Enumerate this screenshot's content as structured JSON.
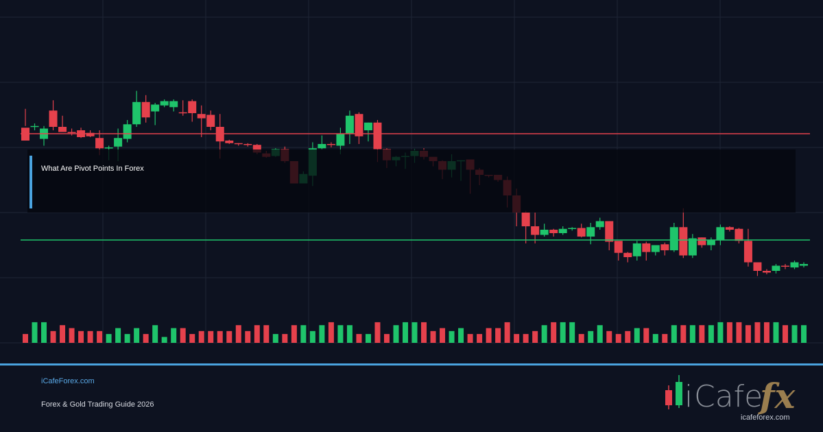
{
  "title": "What Are Pivot Points In Forex",
  "footer": {
    "site": "iCafeForex.com",
    "subtitle": "Forex & Gold Trading Guide 2026"
  },
  "logo": {
    "text_i": "i",
    "text_cafe": "Cafe",
    "text_fx": "fx",
    "url": "icafeforex.com"
  },
  "colors": {
    "background": "#0d1220",
    "bull": "#1fc46b",
    "bear": "#e5414c",
    "resistance": "#e5414c",
    "support": "#1fc46b",
    "accent": "#4aa3df",
    "grid": "#1e2536"
  },
  "chart_data": {
    "type": "candlestick",
    "grid": true,
    "levels": [
      {
        "kind": "resistance",
        "value": 122
      },
      {
        "kind": "support",
        "value": 60
      }
    ],
    "candles": [
      [
        125.5,
        118,
        136.5,
        126.5
      ],
      [
        126.5,
        126.5,
        128,
        124
      ],
      [
        119,
        125,
        126.5,
        115
      ],
      [
        135.5,
        126,
        141.5,
        124
      ],
      [
        126,
        123,
        132.5,
        123
      ],
      [
        123,
        122.5,
        125,
        121
      ],
      [
        124,
        120,
        125.5,
        119.5
      ],
      [
        122.5,
        120.5,
        124,
        120
      ],
      [
        119.5,
        113.5,
        124,
        109.5
      ],
      [
        113.5,
        114,
        115,
        106.5
      ],
      [
        114.5,
        119.5,
        125,
        106
      ],
      [
        119,
        127.5,
        130,
        117
      ],
      [
        127.5,
        140.5,
        147,
        126
      ],
      [
        140.5,
        131.5,
        144.5,
        128.5
      ],
      [
        135,
        139,
        140,
        127
      ],
      [
        138.5,
        141,
        142,
        137.5
      ],
      [
        137.5,
        141,
        142,
        135
      ],
      [
        134.5,
        134,
        141.5,
        132.5
      ],
      [
        141,
        134,
        142,
        129
      ],
      [
        133.5,
        131,
        138.5,
        120
      ],
      [
        133,
        126,
        135.5,
        124
      ],
      [
        126,
        117.5,
        133.5,
        107.5
      ],
      [
        118,
        116.5,
        118.5,
        116
      ],
      [
        116.5,
        116,
        116.5,
        115
      ],
      [
        116,
        115.5,
        116.5,
        114.5
      ],
      [
        115.5,
        111,
        116,
        110
      ],
      [
        110.5,
        108.5,
        112,
        108
      ],
      [
        109,
        113,
        113.5,
        108.5
      ],
      [
        113,
        106,
        114.5,
        105
      ],
      [
        106,
        93,
        106,
        93
      ],
      [
        93,
        98.5,
        100,
        93.5
      ],
      [
        97.5,
        113.5,
        117,
        91.5
      ],
      [
        113.5,
        116,
        121,
        113
      ],
      [
        116,
        115.5,
        117,
        114
      ],
      [
        115,
        122,
        125.5,
        110
      ],
      [
        122,
        132.5,
        135.5,
        116
      ],
      [
        133.5,
        120.5,
        134.5,
        116
      ],
      [
        124,
        128.5,
        128.5,
        117.5
      ],
      [
        128.5,
        113,
        130,
        105.5
      ],
      [
        113,
        106.5,
        113.5,
        102
      ],
      [
        106.5,
        108.5,
        109,
        103
      ],
      [
        108.5,
        109,
        111,
        101.5
      ],
      [
        109,
        112,
        113,
        105
      ],
      [
        112,
        108.5,
        113.5,
        107
      ],
      [
        108.5,
        106,
        107,
        103
      ],
      [
        106,
        101,
        106.5,
        95.5
      ],
      [
        101,
        106,
        110,
        96.5
      ],
      [
        106,
        106.5,
        106.5,
        94.5
      ],
      [
        107,
        101,
        107,
        87
      ],
      [
        101,
        98,
        102,
        92
      ],
      [
        98,
        97.5,
        98,
        96.5
      ],
      [
        98,
        95,
        98,
        94
      ],
      [
        95,
        86,
        97,
        79
      ],
      [
        86,
        76,
        90,
        68
      ],
      [
        76,
        68,
        77,
        58
      ],
      [
        68,
        63,
        76,
        58
      ],
      [
        63,
        66,
        69.5,
        62
      ],
      [
        66,
        64,
        66.5,
        62
      ],
      [
        64,
        66.5,
        68,
        63
      ],
      [
        66.5,
        67,
        67.5,
        65.5
      ],
      [
        67,
        62,
        69.5,
        61.5
      ],
      [
        62,
        67.5,
        70,
        57.5
      ],
      [
        67.5,
        71,
        73,
        66
      ],
      [
        71,
        59,
        71,
        54
      ],
      [
        59.5,
        52.5,
        59,
        48
      ],
      [
        52.5,
        50,
        53,
        47
      ],
      [
        50.5,
        58,
        59.5,
        48
      ],
      [
        58,
        53,
        59,
        48
      ],
      [
        53,
        57,
        57,
        51
      ],
      [
        57.5,
        54,
        58.5,
        51
      ],
      [
        54,
        67.5,
        70,
        53
      ],
      [
        67.5,
        51,
        78.5,
        49.5
      ],
      [
        51,
        61,
        63.5,
        49.5
      ],
      [
        61.5,
        57,
        61.5,
        55.5
      ],
      [
        57,
        60,
        61.5,
        54
      ],
      [
        60,
        67.5,
        69,
        57
      ],
      [
        67.5,
        66,
        68,
        65
      ],
      [
        66.5,
        59.5,
        67,
        58
      ],
      [
        59.5,
        47,
        66.5,
        44.5
      ],
      [
        47,
        42,
        47,
        39
      ],
      [
        42,
        41,
        43,
        40
      ],
      [
        42,
        45,
        46,
        40.5
      ],
      [
        45,
        44.5,
        46,
        43
      ],
      [
        44,
        47,
        48,
        43
      ],
      [
        45,
        46,
        47,
        44
      ]
    ],
    "volume": [
      3,
      7,
      7,
      4,
      6,
      5,
      4,
      4,
      4,
      3,
      5,
      3,
      5,
      3,
      6,
      2,
      5,
      5,
      3,
      4,
      4,
      4,
      4,
      6,
      4,
      6,
      6,
      3,
      3,
      6,
      6,
      4,
      6,
      7,
      6,
      6,
      3,
      3,
      7,
      3,
      6,
      7,
      7,
      7,
      4,
      5,
      4,
      5,
      3,
      3,
      5,
      5,
      7,
      3,
      3,
      4,
      6,
      7,
      7,
      7,
      3,
      4,
      6,
      4,
      3,
      4,
      5,
      5,
      3,
      3,
      6,
      6,
      6,
      6,
      6,
      7,
      7,
      7,
      6,
      7,
      7,
      7,
      6,
      6,
      6
    ]
  }
}
